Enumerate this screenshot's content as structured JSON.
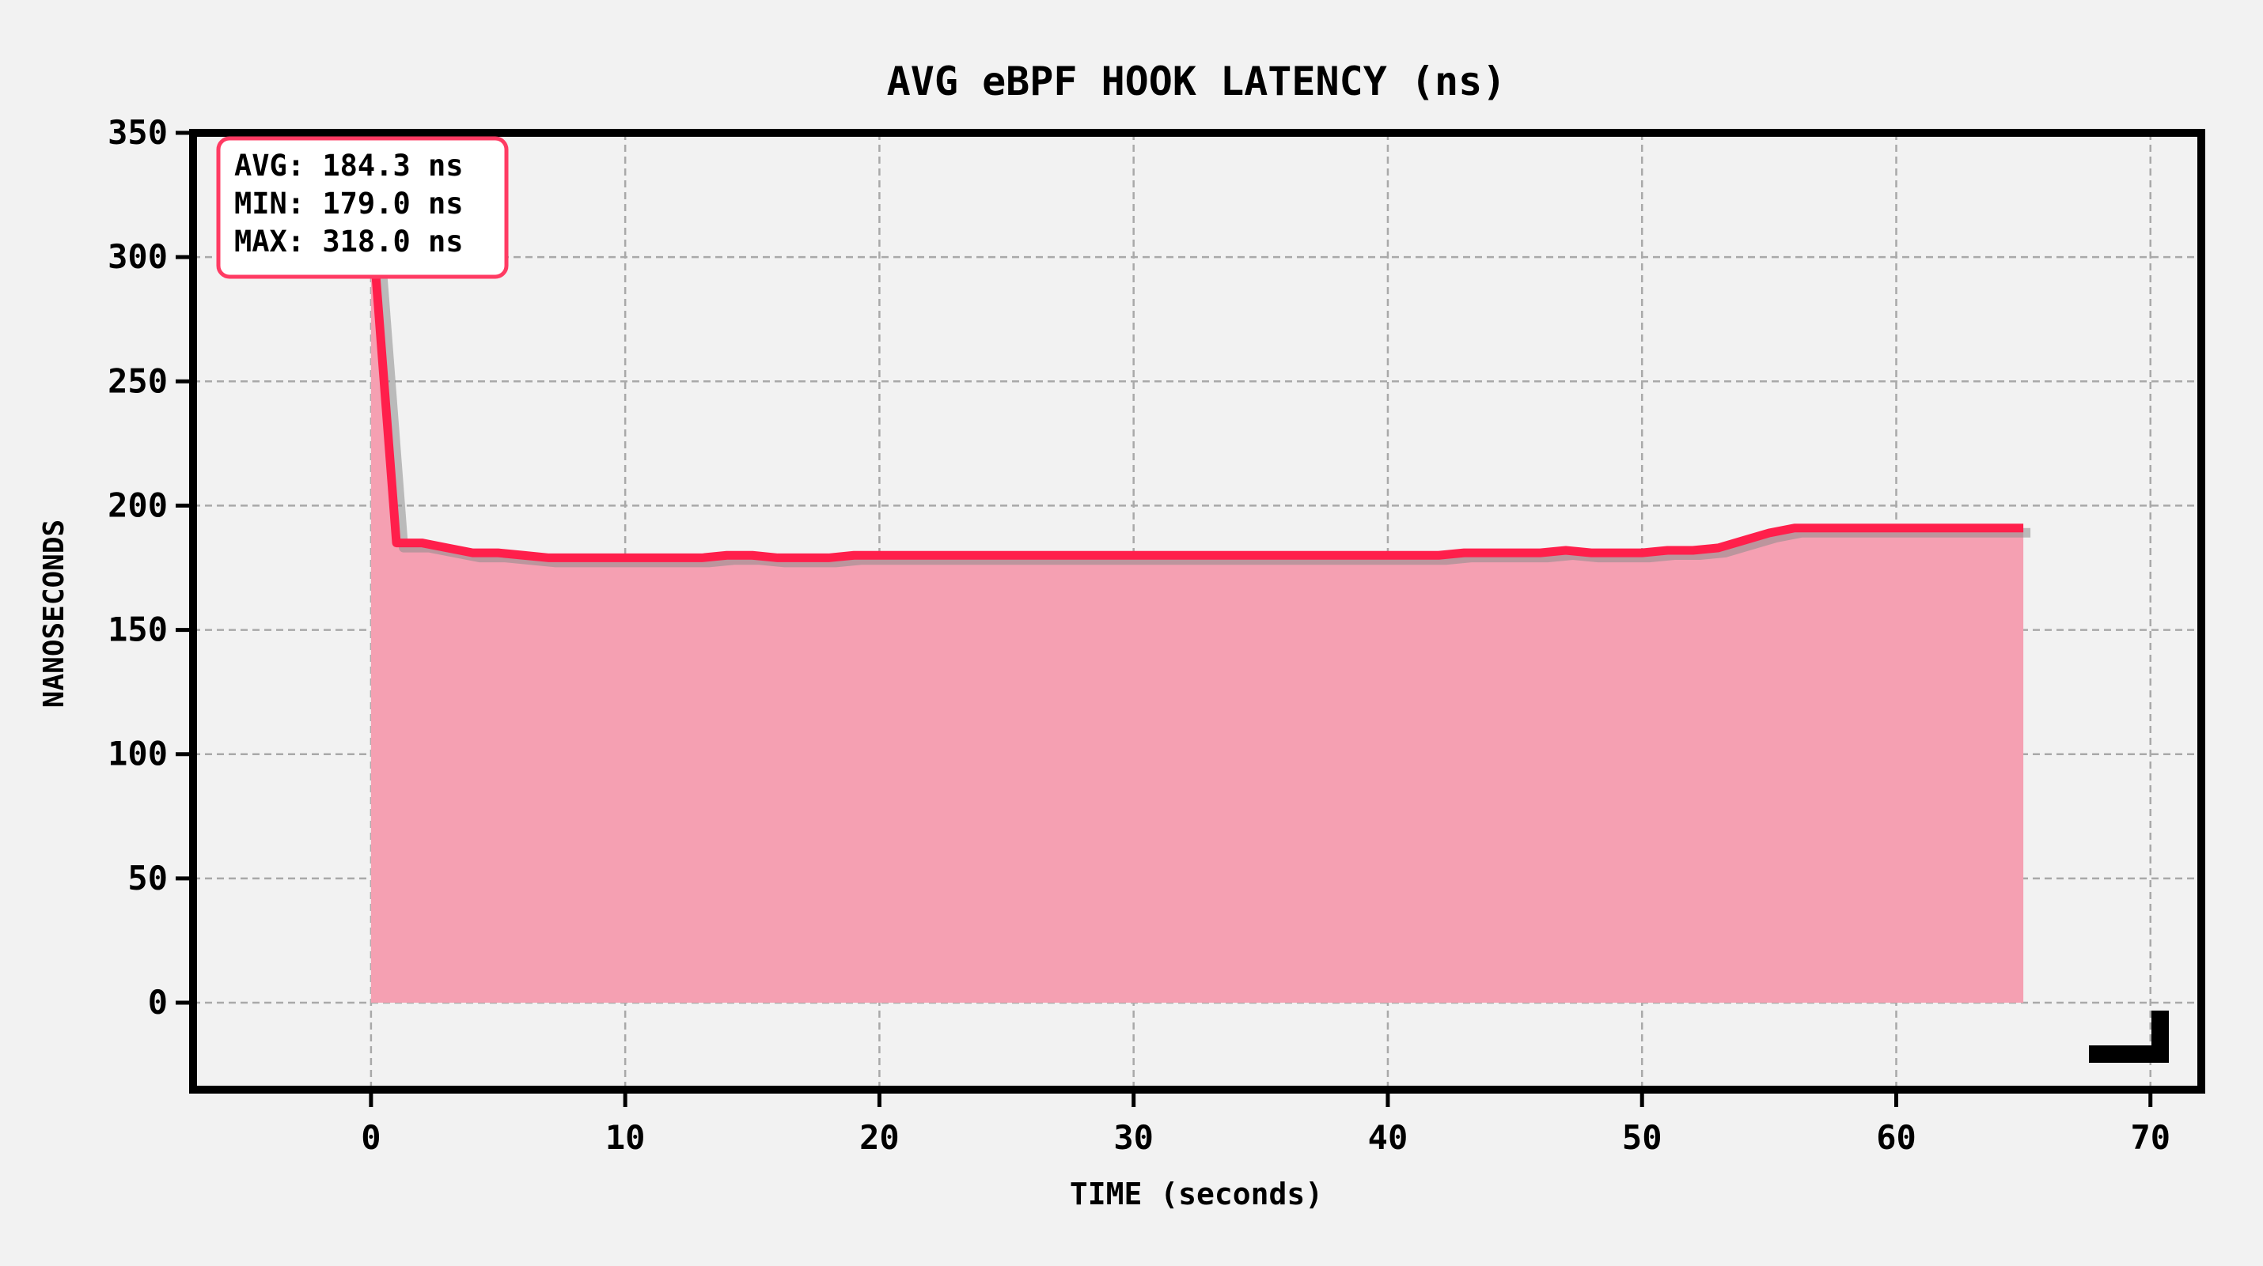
{
  "chart_data": {
    "type": "area",
    "title": "AVG eBPF HOOK LATENCY (ns)",
    "xlabel": "TIME (seconds)",
    "ylabel": "NANOSECONDS",
    "xlim": [
      -7,
      72
    ],
    "ylim": [
      -35,
      350
    ],
    "xticks": [
      0,
      10,
      20,
      30,
      40,
      50,
      60,
      70
    ],
    "yticks": [
      0,
      50,
      100,
      150,
      200,
      250,
      300,
      350
    ],
    "grid": true,
    "stats_box": {
      "lines": [
        "AVG: 184.3 ns",
        "MIN: 179.0 ns",
        "MAX: 318.0 ns"
      ],
      "placement": "top-left"
    },
    "series": [
      {
        "color": "#ff1f4b",
        "fill_color": "#f5a0b2",
        "x": [
          0,
          1,
          2,
          3,
          4,
          5,
          6,
          7,
          8,
          9,
          10,
          11,
          12,
          13,
          14,
          15,
          16,
          17,
          18,
          19,
          20,
          21,
          22,
          23,
          24,
          25,
          26,
          27,
          28,
          29,
          30,
          31,
          32,
          33,
          34,
          35,
          36,
          37,
          38,
          39,
          40,
          41,
          42,
          43,
          44,
          45,
          46,
          47,
          48,
          49,
          50,
          51,
          52,
          53,
          54,
          55,
          56,
          57,
          58,
          59,
          60,
          61,
          62,
          63,
          64,
          65
        ],
        "y": [
          318,
          185,
          185,
          183,
          181,
          181,
          180,
          179,
          179,
          179,
          179,
          179,
          179,
          179,
          180,
          180,
          179,
          179,
          179,
          180,
          180,
          180,
          180,
          180,
          180,
          180,
          180,
          180,
          180,
          180,
          180,
          180,
          180,
          180,
          180,
          180,
          180,
          180,
          180,
          180,
          180,
          180,
          180,
          181,
          181,
          181,
          181,
          182,
          181,
          181,
          181,
          182,
          182,
          183,
          186,
          189,
          191,
          191,
          191,
          191,
          191,
          191,
          191,
          191,
          191,
          191
        ]
      }
    ]
  }
}
